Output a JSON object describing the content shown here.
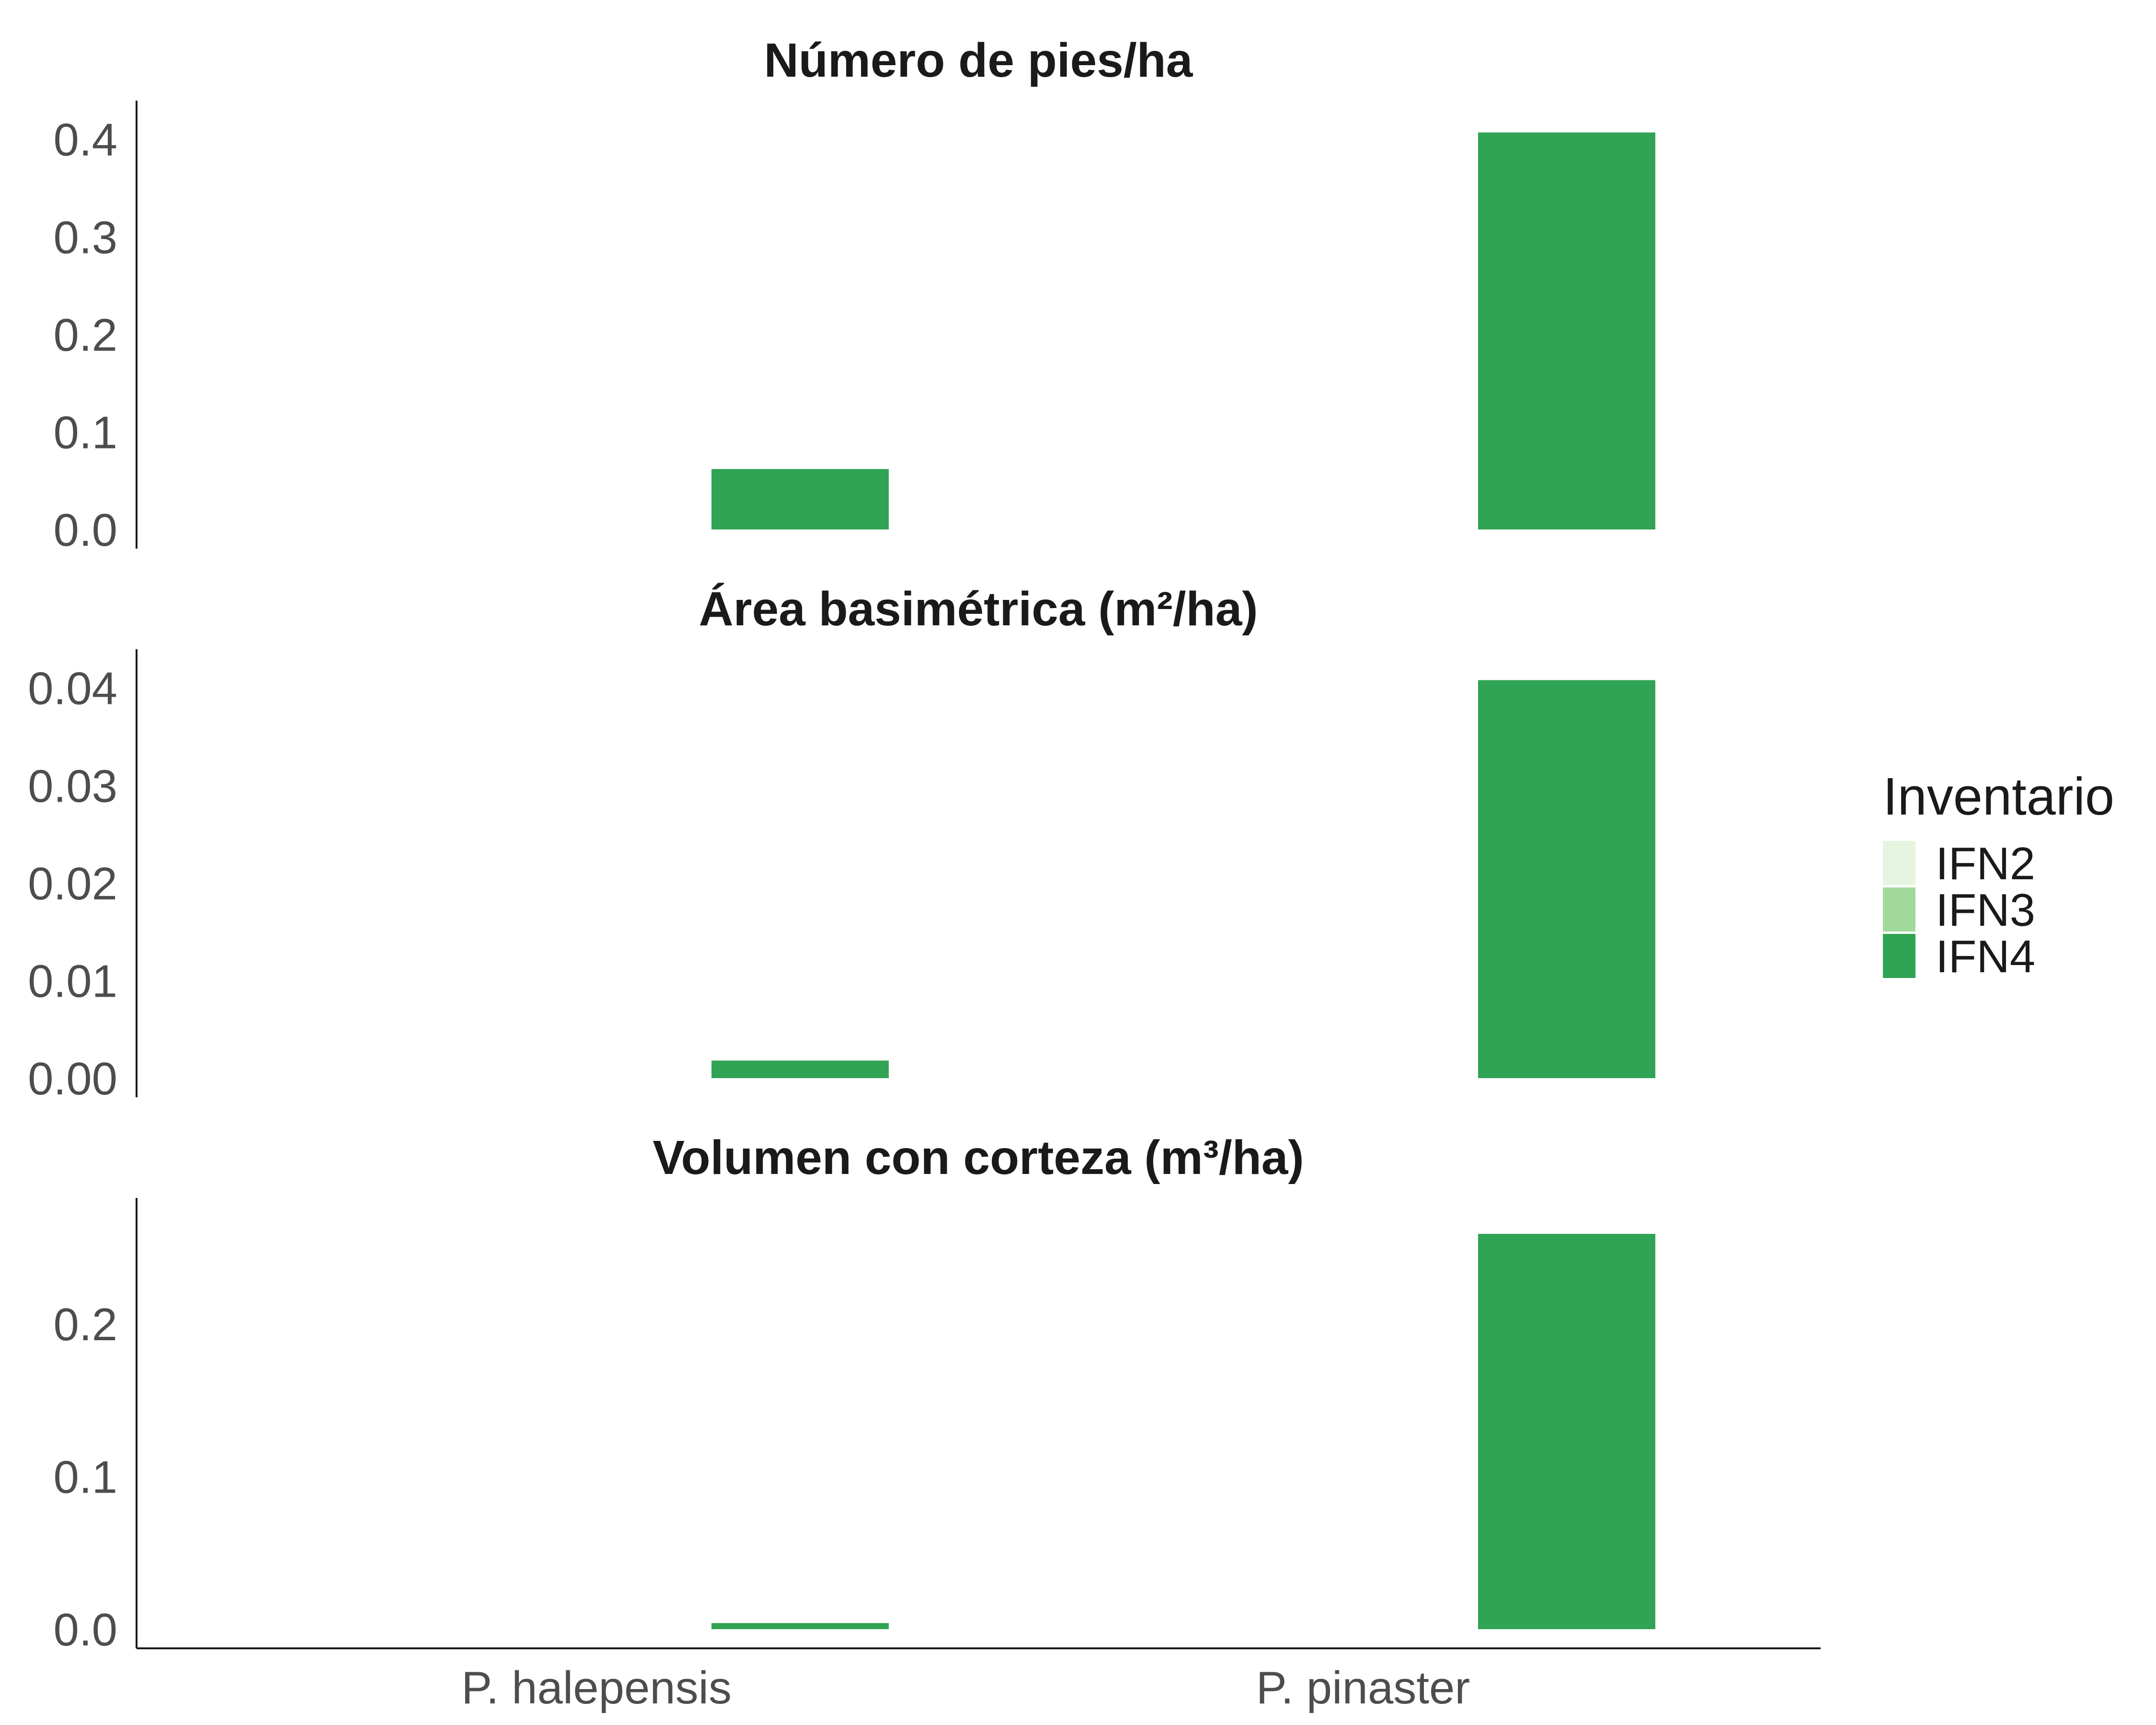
{
  "chart_data": {
    "type": "bar",
    "categories": [
      "P. halepensis",
      "P. pinaster"
    ],
    "legend": {
      "title": "Inventario",
      "placement": "right",
      "items": [
        {
          "name": "IFN2",
          "color": "#e5f5e0"
        },
        {
          "name": "IFN3",
          "color": "#a1d99b"
        },
        {
          "name": "IFN4",
          "color": "#31a354"
        }
      ]
    },
    "panels": [
      {
        "title": "Número de pies/ha",
        "ylim": [
          0,
          0.42
        ],
        "yticks": [
          0.0,
          0.1,
          0.2,
          0.3,
          0.4
        ],
        "ytick_labels": [
          "0.0",
          "0.1",
          "0.2",
          "0.3",
          "0.4"
        ],
        "series": [
          {
            "name": "IFN4",
            "values": [
              0.062,
              0.407
            ]
          }
        ]
      },
      {
        "title": "Área basimétrica (m²/ha)",
        "ylim": [
          0,
          0.042
        ],
        "yticks": [
          0.0,
          0.01,
          0.02,
          0.03,
          0.04
        ],
        "ytick_labels": [
          "0.00",
          "0.01",
          "0.02",
          "0.03",
          "0.04"
        ],
        "series": [
          {
            "name": "IFN4",
            "values": [
              0.0018,
              0.0408
            ]
          }
        ]
      },
      {
        "title": "Volumen con corteza (m³/ha)",
        "ylim": [
          0,
          0.27
        ],
        "yticks": [
          0.0,
          0.1,
          0.2
        ],
        "ytick_labels": [
          "0.0",
          "0.1",
          "0.2"
        ],
        "series": [
          {
            "name": "IFN4",
            "values": [
              0.004,
              0.259
            ]
          }
        ]
      }
    ]
  }
}
